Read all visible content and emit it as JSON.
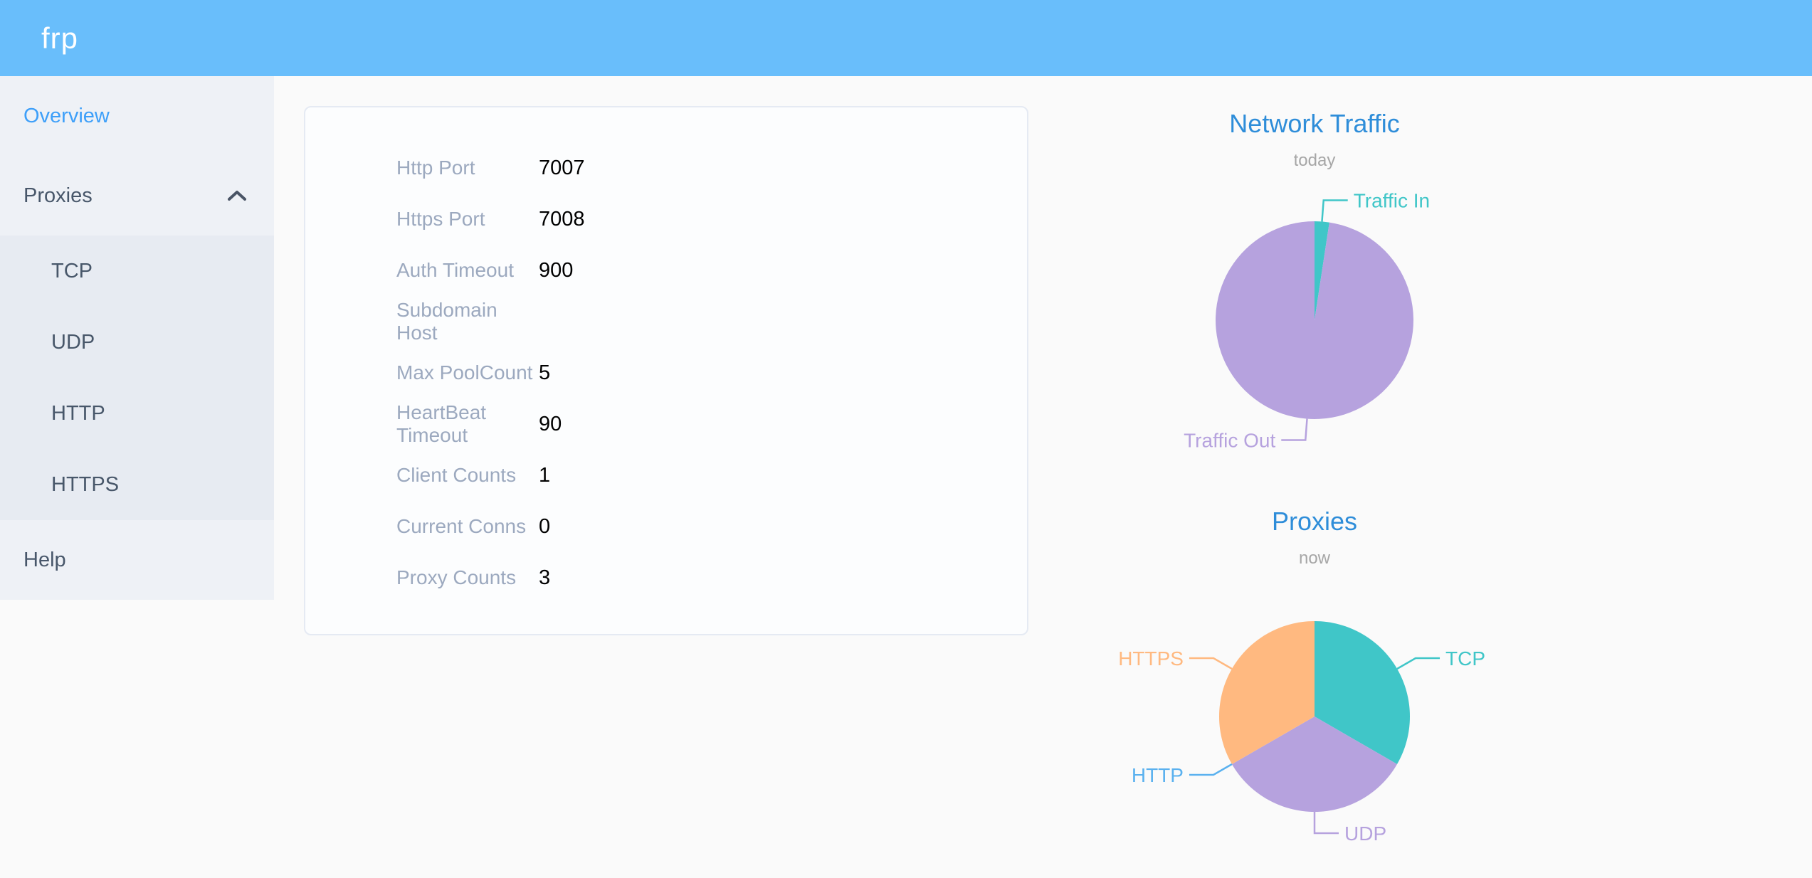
{
  "header": {
    "logo_text": "frp"
  },
  "sidebar": {
    "items": [
      {
        "id": "overview",
        "label": "Overview",
        "active": true
      },
      {
        "id": "proxies",
        "label": "Proxies",
        "expanded": true,
        "children": [
          {
            "id": "tcp",
            "label": "TCP"
          },
          {
            "id": "udp",
            "label": "UDP"
          },
          {
            "id": "http",
            "label": "HTTP"
          },
          {
            "id": "https",
            "label": "HTTPS"
          }
        ]
      },
      {
        "id": "help",
        "label": "Help"
      }
    ]
  },
  "overview_card": {
    "rows": [
      {
        "label": "Http Port",
        "value": "7007"
      },
      {
        "label": "Https Port",
        "value": "7008"
      },
      {
        "label": "Auth Timeout",
        "value": "900"
      },
      {
        "label": "Subdomain Host",
        "value": ""
      },
      {
        "label": "Max PoolCount",
        "value": "5"
      },
      {
        "label": "HeartBeat Timeout",
        "value": "90"
      },
      {
        "label": "Client Counts",
        "value": "1"
      },
      {
        "label": "Current Conns",
        "value": "0"
      },
      {
        "label": "Proxy Counts",
        "value": "3"
      }
    ]
  },
  "chart_data": [
    {
      "type": "pie",
      "title": "Network Traffic",
      "subtitle": "today",
      "labels": [
        "Traffic In",
        "Traffic Out"
      ],
      "values": [
        2.4,
        97.6
      ],
      "value_unit": "percent_of_circle_estimated",
      "colors": [
        "#40C6C8",
        "#B6A2DE"
      ],
      "label_style": "outside_with_leader_lines",
      "legend": "none"
    },
    {
      "type": "pie",
      "title": "Proxies",
      "subtitle": "now",
      "labels": [
        "TCP",
        "UDP",
        "HTTP",
        "HTTPS"
      ],
      "values": [
        1,
        1,
        0,
        1
      ],
      "value_unit": "proxy_count_estimated",
      "colors": [
        "#40C6C8",
        "#B6A2DE",
        "#5AB1EF",
        "#FFB980"
      ],
      "label_style": "outside_with_leader_lines",
      "legend": "none"
    }
  ],
  "colors": {
    "header_bg": "#69BEFB",
    "sidebar_bg": "#EEF1F6",
    "submenu_bg": "#E7EBF2",
    "menu_text": "#48576A",
    "menu_active": "#3D9FF9",
    "main_bg": "#FAFAFA",
    "card_bg": "#FCFDFE",
    "card_border": "#E5EAF3",
    "label_color": "#9CA9BF",
    "value_color": "#000000",
    "chart_title": "#2E8DD9",
    "chart_subtitle": "#A6A6A6"
  }
}
